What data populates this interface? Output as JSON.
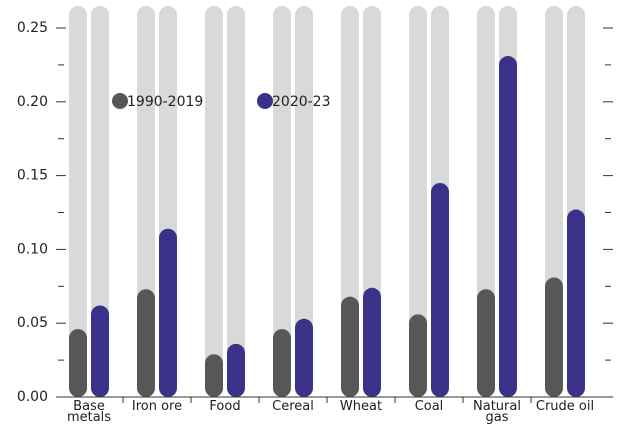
{
  "chart_data": {
    "type": "bar",
    "categories": [
      "Base\nmetals",
      "Iron ore",
      "Food",
      "Cereal",
      "Wheat",
      "Coal",
      "Natural\ngas",
      "Crude oil"
    ],
    "series": [
      {
        "name": "1990-2019",
        "color": "#575757",
        "values": [
          0.046,
          0.073,
          0.029,
          0.046,
          0.068,
          0.056,
          0.073,
          0.081
        ]
      },
      {
        "name": "2020-23",
        "color": "#3a3288",
        "values": [
          0.062,
          0.114,
          0.036,
          0.053,
          0.074,
          0.145,
          0.231,
          0.127
        ]
      }
    ],
    "track_color": "#d9d9d9",
    "ylim": [
      0,
      0.25
    ],
    "yticks": [
      {
        "value": 0,
        "label": "0.00"
      },
      {
        "value": 0.05,
        "label": "0.05"
      },
      {
        "value": 0.1,
        "label": "0.10"
      },
      {
        "value": 0.15,
        "label": "0.15"
      },
      {
        "value": 0.2,
        "label": "0.20"
      },
      {
        "value": 0.25,
        "label": "0.25"
      }
    ],
    "minor_yticks": [
      0.025,
      0.075,
      0.125,
      0.175,
      0.225
    ]
  }
}
